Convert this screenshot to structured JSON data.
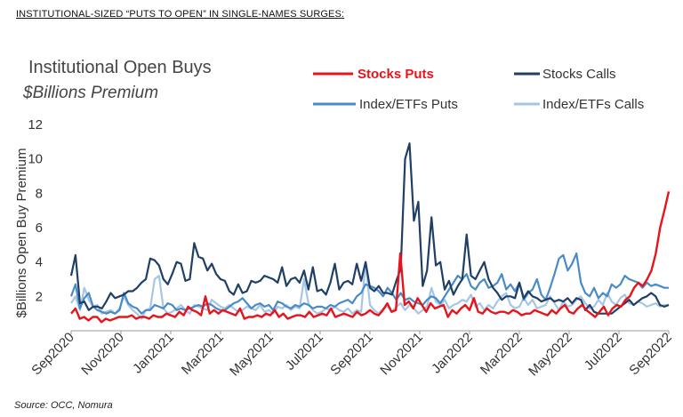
{
  "headline": "INSTITUTIONAL-SIZED “PUTS TO OPEN” IN SINGLE-NAMES SURGES:",
  "source": "Source: OCC, Nomura",
  "chart_data": {
    "type": "line",
    "title": "Institutional Open Buys",
    "subtitle": "$Billions Premium",
    "xlabel": "",
    "ylabel": "$Billions Open Buy Premium",
    "ylim": [
      0,
      12
    ],
    "yticks": [
      "",
      "2",
      "4",
      "6",
      "8",
      "10",
      "12"
    ],
    "ytick_values": [
      0,
      2,
      4,
      6,
      8,
      10,
      12
    ],
    "xticks": [
      "Sep2020",
      "Nov2020",
      "Jan2021",
      "Mar2021",
      "May2021",
      "Jul2021",
      "Sep2021",
      "Nov2021",
      "Jan2022",
      "Mar2022",
      "May2022",
      "Jul2022",
      "Sep2022"
    ],
    "grid": false,
    "legend": "top",
    "series": [
      {
        "name": "Stocks Puts",
        "color": "#e8141b",
        "values": [
          1.0,
          1.3,
          0.7,
          0.8,
          0.6,
          0.8,
          0.8,
          0.5,
          0.7,
          0.6,
          0.7,
          0.8,
          0.8,
          0.8,
          0.9,
          0.7,
          0.8,
          0.8,
          0.7,
          0.9,
          0.8,
          0.8,
          1.0,
          0.9,
          0.8,
          1.1,
          0.9,
          1.4,
          1.2,
          1.1,
          0.9,
          2.0,
          1.0,
          1.2,
          1.0,
          1.2,
          1.1,
          1.0,
          0.9,
          1.3,
          0.7,
          0.8,
          0.8,
          0.9,
          0.8,
          1.0,
          0.9,
          1.2,
          0.8,
          1.0,
          0.7,
          0.8,
          0.9,
          0.9,
          0.8,
          1.1,
          0.8,
          0.9,
          1.0,
          0.9,
          1.3,
          0.8,
          0.9,
          1.0,
          0.9,
          0.8,
          1.1,
          0.9,
          1.0,
          1.2,
          1.0,
          0.9,
          1.2,
          1.6,
          1.1,
          1.2,
          4.5,
          1.5,
          1.7,
          1.3,
          1.9,
          1.5,
          1.1,
          1.6,
          1.3,
          1.4,
          1.5,
          0.8,
          1.2,
          1.0,
          1.3,
          1.5,
          1.2,
          1.9,
          1.1,
          1.0,
          1.3,
          1.1,
          1.0,
          1.1,
          1.1,
          1.0,
          1.2,
          1.1,
          0.9,
          1.0,
          1.0,
          1.2,
          1.1,
          1.0,
          0.9,
          1.2,
          1.0,
          1.3,
          1.5,
          1.1,
          1.0,
          1.3,
          1.5,
          1.2,
          1.0,
          0.8,
          1.1,
          1.4,
          0.9,
          1.3,
          1.5,
          1.4,
          1.8,
          2.0,
          2.5,
          2.8,
          2.6,
          3.0,
          3.5,
          4.5,
          6.0,
          7.0,
          8.1
        ]
      },
      {
        "name": "Stocks Calls",
        "color": "#1f3f66",
        "values": [
          3.2,
          4.4,
          1.6,
          1.7,
          1.2,
          1.4,
          1.4,
          1.3,
          1.7,
          2.2,
          1.9,
          2.0,
          2.1,
          2.3,
          2.3,
          2.5,
          2.8,
          3.0,
          4.2,
          4.1,
          3.8,
          3.0,
          2.7,
          3.3,
          4.0,
          3.9,
          2.9,
          3.0,
          5.1,
          4.3,
          4.2,
          3.5,
          3.9,
          3.3,
          3.0,
          2.9,
          2.3,
          2.1,
          2.7,
          2.2,
          2.3,
          2.9,
          2.8,
          2.9,
          3.2,
          3.1,
          3.0,
          2.8,
          3.7,
          2.6,
          3.0,
          3.1,
          2.8,
          3.5,
          2.4,
          3.7,
          2.3,
          2.4,
          2.1,
          2.8,
          3.9,
          2.4,
          2.8,
          2.9,
          2.7,
          3.9,
          2.9,
          4.0,
          2.5,
          2.3,
          2.6,
          2.2,
          2.2,
          2.1,
          2.9,
          3.6,
          10.0,
          10.9,
          6.4,
          7.5,
          2.6,
          3.5,
          6.6,
          3.8,
          4.0,
          2.4,
          2.9,
          2.1,
          2.6,
          3.0,
          5.6,
          3.2,
          3.0,
          3.5,
          4.0,
          3.0,
          2.5,
          2.2,
          1.8,
          2.0,
          2.0,
          1.9,
          2.8,
          1.9,
          2.3,
          2.0,
          1.9,
          1.7,
          1.8,
          1.9,
          1.7,
          1.8,
          1.7,
          1.9,
          1.6,
          1.9,
          1.8,
          1.2,
          1.5,
          1.1,
          1.0,
          1.0,
          1.0,
          1.0,
          1.2,
          1.4,
          1.6,
          1.8,
          1.5,
          1.7,
          1.9,
          2.0,
          2.2,
          2.0,
          1.5,
          1.4,
          1.5
        ]
      },
      {
        "name": "Index/ETFs Puts",
        "color": "#4a8bc6",
        "values": [
          2.0,
          2.7,
          1.3,
          1.9,
          2.2,
          1.4,
          1.2,
          1.1,
          1.0,
          1.1,
          1.0,
          1.2,
          2.2,
          1.6,
          1.4,
          1.3,
          1.0,
          1.2,
          1.2,
          1.5,
          1.4,
          1.3,
          1.6,
          1.5,
          1.2,
          1.3,
          1.2,
          1.3,
          1.4,
          1.5,
          1.4,
          1.6,
          1.5,
          1.3,
          1.2,
          1.2,
          1.4,
          1.6,
          1.7,
          1.9,
          1.6,
          1.3,
          1.5,
          1.6,
          1.4,
          1.5,
          1.2,
          1.7,
          1.6,
          1.4,
          1.3,
          1.5,
          1.4,
          1.6,
          1.5,
          1.3,
          1.4,
          1.4,
          1.3,
          1.5,
          1.4,
          1.6,
          1.7,
          1.8,
          1.6,
          2.0,
          2.2,
          2.7,
          2.6,
          2.5,
          2.3,
          2.0,
          2.5,
          2.2,
          1.8,
          2.2,
          1.8,
          1.9,
          1.7,
          1.6,
          1.5,
          1.8,
          2.0,
          1.9,
          1.6,
          2.0,
          2.4,
          2.8,
          3.2,
          3.0,
          3.3,
          2.6,
          2.4,
          2.8,
          3.0,
          2.5,
          2.6,
          2.8,
          3.3,
          2.4,
          2.7,
          2.3,
          2.8,
          1.8,
          2.2,
          2.4,
          3.0,
          2.1,
          1.8,
          2.5,
          3.3,
          4.2,
          4.4,
          3.5,
          3.9,
          4.5,
          2.8,
          2.2,
          2.0,
          2.5,
          1.9,
          2.2,
          2.0,
          2.7,
          2.5,
          2.7,
          3.2,
          3.0,
          2.9,
          2.8,
          2.5,
          2.8,
          2.6,
          2.7,
          2.6,
          2.5,
          2.5
        ]
      },
      {
        "name": "Index/ETFs Calls",
        "color": "#a6c6e6",
        "values": [
          1.6,
          2.0,
          1.2,
          2.5,
          1.8,
          1.4,
          1.5,
          1.0,
          1.1,
          1.2,
          1.0,
          1.3,
          2.0,
          1.5,
          1.2,
          1.0,
          0.7,
          1.2,
          1.3,
          3.0,
          3.2,
          1.3,
          1.0,
          1.1,
          1.3,
          1.5,
          1.2,
          1.0,
          1.5,
          1.4,
          1.3,
          1.2,
          1.8,
          1.6,
          1.4,
          1.3,
          1.5,
          1.3,
          1.1,
          1.2,
          1.4,
          1.3,
          1.2,
          1.5,
          1.1,
          1.2,
          1.0,
          1.4,
          1.3,
          1.5,
          1.2,
          1.4,
          1.3,
          3.0,
          1.6,
          1.2,
          1.0,
          1.1,
          1.3,
          1.2,
          1.4,
          1.2,
          1.1,
          1.3,
          1.0,
          1.2,
          1.1,
          4.0,
          1.5,
          1.2,
          1.0,
          1.3,
          1.4,
          1.1,
          1.4,
          1.6,
          1.2,
          1.5,
          1.3,
          1.0,
          1.2,
          1.4,
          2.5,
          1.7,
          1.5,
          1.8,
          1.3,
          1.5,
          1.6,
          1.8,
          1.7,
          2.1,
          1.4,
          1.6,
          1.2,
          1.5,
          1.3,
          1.7,
          2.0,
          2.2,
          1.5,
          1.3,
          1.4,
          1.9,
          1.5,
          1.8,
          1.3,
          1.4,
          1.5,
          2.0,
          1.6,
          1.2,
          1.7,
          1.4,
          1.5,
          1.8,
          2.0,
          1.6,
          1.3,
          1.4,
          1.8,
          1.5,
          2.2,
          1.7,
          1.5,
          1.9,
          2.1,
          1.6,
          1.5,
          1.7,
          1.6,
          1.4,
          1.5,
          1.6,
          1.4,
          1.5,
          1.5
        ]
      }
    ]
  }
}
